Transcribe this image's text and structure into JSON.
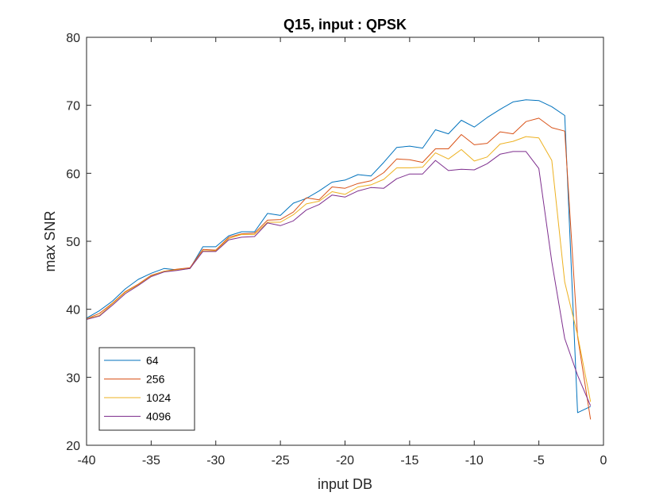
{
  "chart_data": {
    "type": "line",
    "title": "Q15, input : QPSK",
    "xlabel": "input DB",
    "ylabel": "max SNR",
    "xlim": [
      -40,
      0
    ],
    "ylim": [
      20,
      80
    ],
    "xticks": [
      -40,
      -35,
      -30,
      -25,
      -20,
      -15,
      -10,
      -5,
      0
    ],
    "yticks": [
      20,
      30,
      40,
      50,
      60,
      70,
      80
    ],
    "grid": false,
    "legend_position": "bottom-left",
    "x": [
      -40,
      -39,
      -38,
      -37,
      -36,
      -35,
      -34,
      -33,
      -32,
      -31,
      -30,
      -29,
      -28,
      -27,
      -26,
      -25,
      -24,
      -23,
      -22,
      -21,
      -20,
      -19,
      -18,
      -17,
      -16,
      -15,
      -14,
      -13,
      -12,
      -11,
      -10,
      -9,
      -8,
      -7,
      -6,
      -5,
      -4,
      -3,
      -2,
      -1
    ],
    "series": [
      {
        "name": "64",
        "color": "#0072BD",
        "values": [
          38.7,
          39.8,
          41.2,
          43.0,
          44.4,
          45.3,
          46.0,
          45.8,
          46.0,
          49.2,
          49.2,
          50.8,
          51.4,
          51.4,
          54.1,
          53.8,
          55.6,
          56.3,
          57.4,
          58.7,
          59.0,
          59.8,
          59.6,
          61.6,
          63.8,
          64.0,
          63.7,
          66.4,
          65.8,
          67.8,
          66.8,
          68.2,
          69.4,
          70.5,
          70.8,
          70.7,
          69.8,
          68.5,
          24.8,
          25.7
        ]
      },
      {
        "name": "256",
        "color": "#D95319",
        "values": [
          38.6,
          39.4,
          40.9,
          42.6,
          43.7,
          45.0,
          45.6,
          45.9,
          46.1,
          48.8,
          48.7,
          50.6,
          51.1,
          51.2,
          53.1,
          53.2,
          54.3,
          56.4,
          56.1,
          58.0,
          57.8,
          58.5,
          58.9,
          60.1,
          62.1,
          62.0,
          61.6,
          63.6,
          63.6,
          65.7,
          64.2,
          64.4,
          66.1,
          65.8,
          67.6,
          68.1,
          66.7,
          66.2,
          36.0,
          23.8
        ]
      },
      {
        "name": "1024",
        "color": "#EDB120",
        "values": [
          38.6,
          39.1,
          40.8,
          42.5,
          43.6,
          44.9,
          45.6,
          45.8,
          46.0,
          48.6,
          48.6,
          50.4,
          51.0,
          51.0,
          52.8,
          52.8,
          53.9,
          55.5,
          55.9,
          57.3,
          56.9,
          58.0,
          58.3,
          59.1,
          60.8,
          60.8,
          60.9,
          63.0,
          62.1,
          63.5,
          61.8,
          62.4,
          64.3,
          64.7,
          65.4,
          65.2,
          61.9,
          44.0,
          36.2,
          26.4
        ]
      },
      {
        "name": "4096",
        "color": "#7E2F8E",
        "values": [
          38.5,
          39.0,
          40.6,
          42.3,
          43.5,
          44.8,
          45.5,
          45.7,
          46.0,
          48.5,
          48.5,
          50.2,
          50.6,
          50.7,
          52.7,
          52.3,
          53.0,
          54.6,
          55.4,
          56.8,
          56.5,
          57.4,
          57.9,
          57.8,
          59.2,
          59.9,
          59.9,
          61.9,
          60.4,
          60.6,
          60.5,
          61.4,
          62.8,
          63.2,
          63.2,
          60.7,
          47.0,
          35.7,
          30.3,
          25.8
        ]
      }
    ]
  }
}
